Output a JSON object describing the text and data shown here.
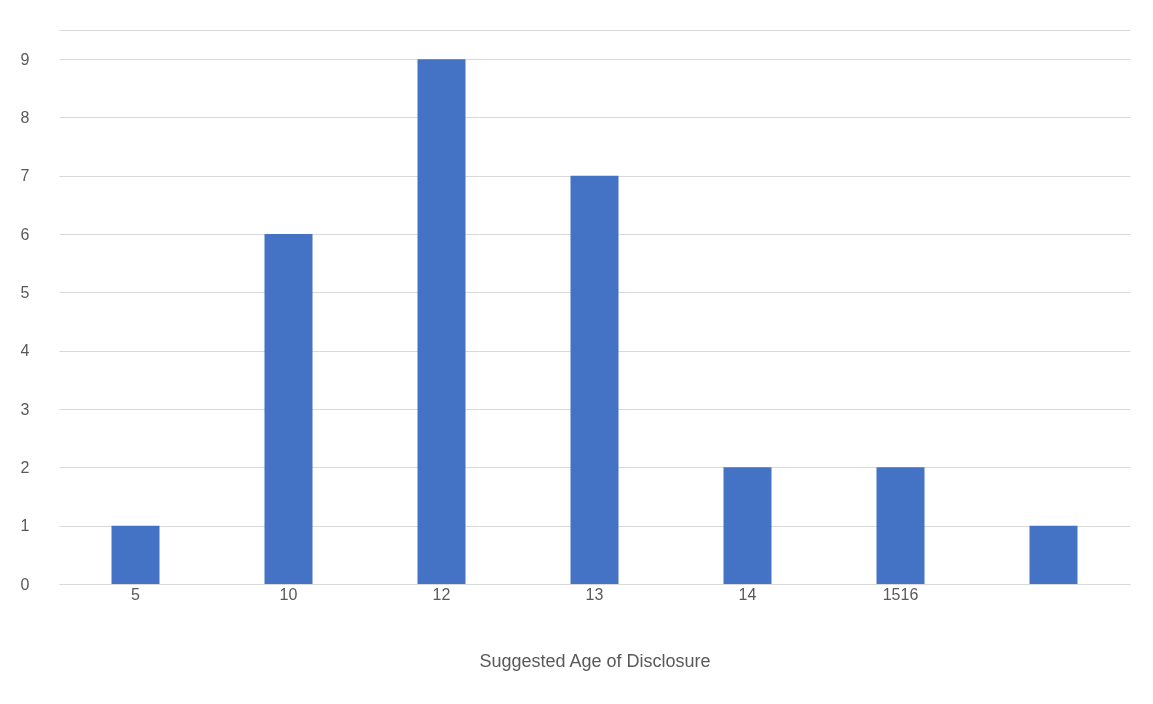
{
  "chart_data": {
    "type": "bar",
    "xlabel": "Suggested Age of Disclosure",
    "categories": [
      "5",
      "10",
      "12",
      "13",
      "14",
      "1516",
      null
    ],
    "values": [
      1,
      6,
      9,
      7,
      2,
      2,
      1
    ],
    "color": "#4472c4",
    "ylim": [
      0,
      9.5
    ],
    "yticks": [
      0,
      1,
      2,
      3,
      4,
      5,
      6,
      7,
      8,
      9,
      {
        "value": 9.5,
        "label": null
      }
    ],
    "grid": "y"
  }
}
